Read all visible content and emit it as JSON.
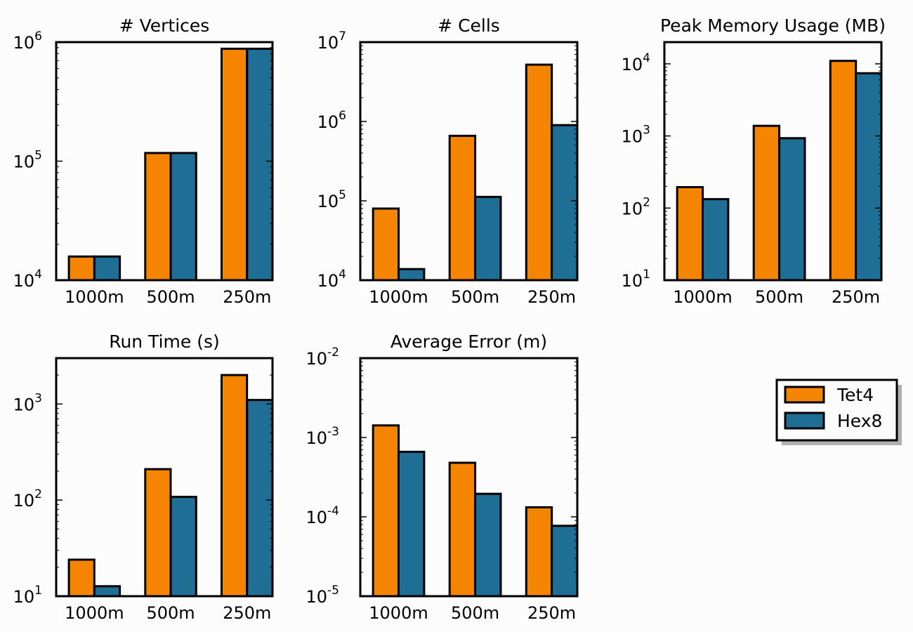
{
  "colors": {
    "Tet4": "#f58400",
    "Hex8": "#1f6e96"
  },
  "legend": {
    "items": [
      {
        "label": "Tet4",
        "color": "#f58400"
      },
      {
        "label": "Hex8",
        "color": "#1f6e96"
      }
    ]
  },
  "chart_data": [
    {
      "type": "bar",
      "title": "# Vertices",
      "log_scale": true,
      "ylim_exp": [
        4,
        6
      ],
      "categories": [
        "1000m",
        "500m",
        "250m"
      ],
      "series": [
        {
          "name": "Tet4",
          "values": [
            15800,
            117000,
            880000
          ]
        },
        {
          "name": "Hex8",
          "values": [
            15800,
            117000,
            880000
          ]
        }
      ]
    },
    {
      "type": "bar",
      "title": "# Cells",
      "log_scale": true,
      "ylim_exp": [
        4,
        7
      ],
      "categories": [
        "1000m",
        "500m",
        "250m"
      ],
      "series": [
        {
          "name": "Tet4",
          "values": [
            80000,
            660000,
            5200000
          ]
        },
        {
          "name": "Hex8",
          "values": [
            13800,
            112000,
            900000
          ]
        }
      ]
    },
    {
      "type": "bar",
      "title": "Peak Memory Usage (MB)",
      "log_scale": true,
      "ylim": [
        10,
        20000
      ],
      "tick_exps": [
        1,
        2,
        3,
        4
      ],
      "categories": [
        "1000m",
        "500m",
        "250m"
      ],
      "series": [
        {
          "name": "Tet4",
          "values": [
            195,
            1380,
            11000
          ]
        },
        {
          "name": "Hex8",
          "values": [
            133,
            930,
            7400
          ]
        }
      ]
    },
    {
      "type": "bar",
      "title": "Run Time (s)",
      "log_scale": true,
      "ylim": [
        10,
        3000
      ],
      "tick_exps": [
        1,
        2,
        3
      ],
      "categories": [
        "1000m",
        "500m",
        "250m"
      ],
      "series": [
        {
          "name": "Tet4",
          "values": [
            24,
            210,
            2000
          ]
        },
        {
          "name": "Hex8",
          "values": [
            12.7,
            108,
            1100
          ]
        }
      ]
    },
    {
      "type": "bar",
      "title": "Average Error (m)",
      "log_scale": true,
      "ylim_exp": [
        -5,
        -2
      ],
      "categories": [
        "1000m",
        "500m",
        "250m"
      ],
      "series": [
        {
          "name": "Tet4",
          "values": [
            0.00142,
            0.00048,
            0.000132
          ]
        },
        {
          "name": "Hex8",
          "values": [
            0.00066,
            0.000195,
            7.7e-05
          ]
        }
      ]
    }
  ]
}
